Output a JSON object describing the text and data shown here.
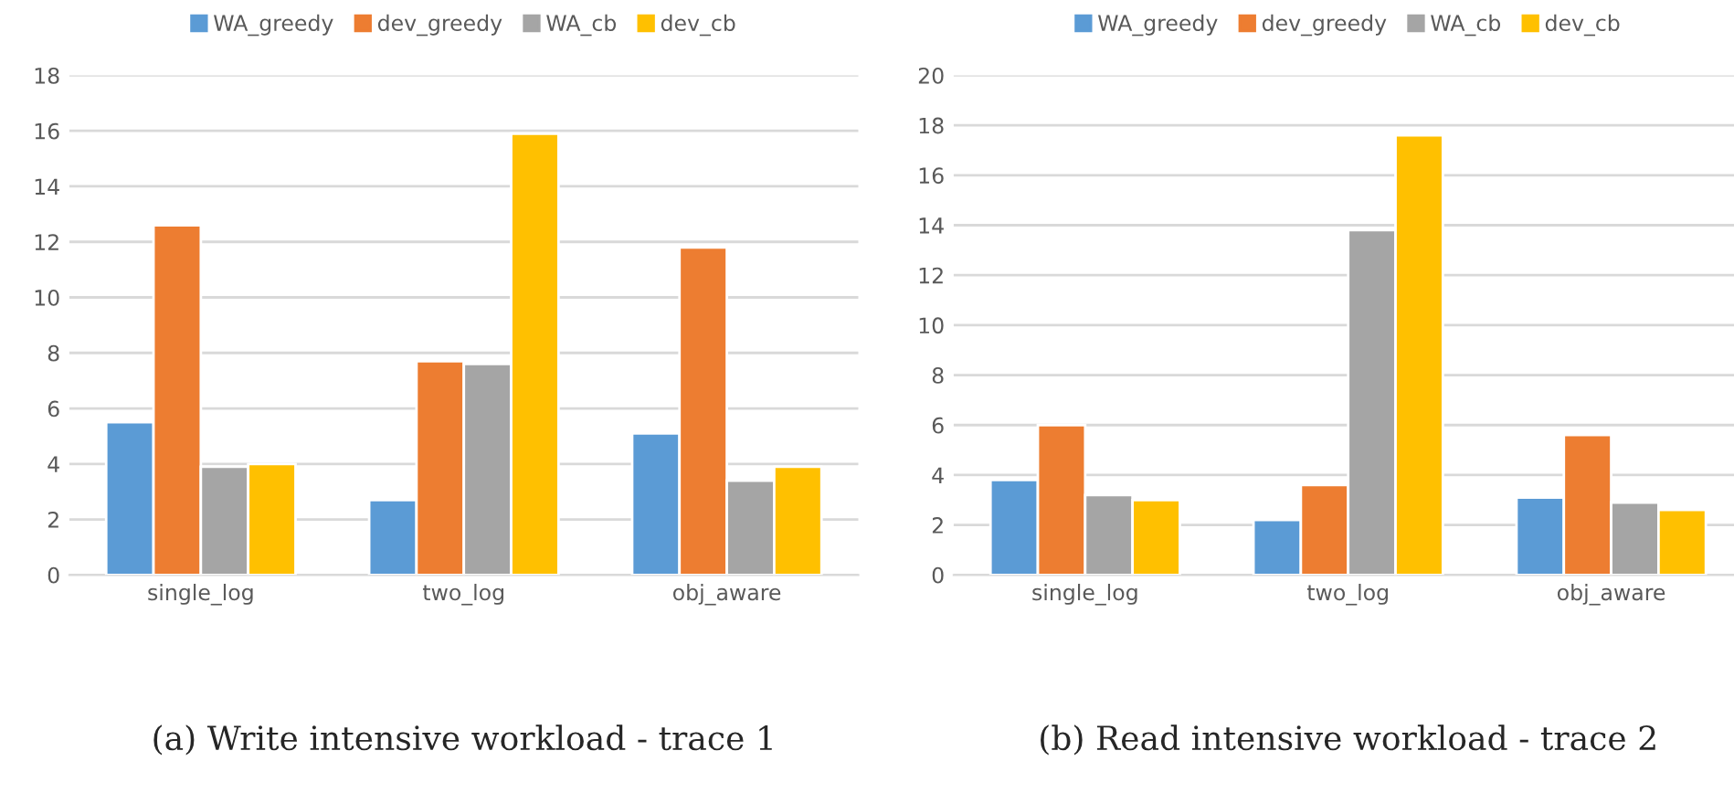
{
  "chart_data": [
    {
      "type": "bar",
      "categories": [
        "single_log",
        "two_log",
        "obj_aware"
      ],
      "series": [
        {
          "name": "WA_greedy",
          "color": "#5b9bd5",
          "values": [
            5.5,
            2.7,
            5.1
          ]
        },
        {
          "name": "dev_greedy",
          "color": "#ed7d31",
          "values": [
            12.6,
            7.7,
            11.8
          ]
        },
        {
          "name": "WA_cb",
          "color": "#a5a5a5",
          "values": [
            3.9,
            7.6,
            3.4
          ]
        },
        {
          "name": "dev_cb",
          "color": "#ffc000",
          "values": [
            4.0,
            15.9,
            3.9
          ]
        }
      ],
      "ylim": [
        0,
        18
      ],
      "yticks": [
        0,
        2,
        4,
        6,
        8,
        10,
        12,
        14,
        16,
        18
      ],
      "grid": "y",
      "legend": "top",
      "annotations": [
        "(a) Write intensive workload - trace 1"
      ]
    },
    {
      "type": "bar",
      "categories": [
        "single_log",
        "two_log",
        "obj_aware"
      ],
      "series": [
        {
          "name": "WA_greedy",
          "color": "#5b9bd5",
          "values": [
            3.8,
            2.2,
            3.1
          ]
        },
        {
          "name": "dev_greedy",
          "color": "#ed7d31",
          "values": [
            6.0,
            3.6,
            5.6
          ]
        },
        {
          "name": "WA_cb",
          "color": "#a5a5a5",
          "values": [
            3.2,
            13.8,
            2.9
          ]
        },
        {
          "name": "dev_cb",
          "color": "#ffc000",
          "values": [
            3.0,
            17.6,
            2.6
          ]
        }
      ],
      "ylim": [
        0,
        20
      ],
      "yticks": [
        0,
        2,
        4,
        6,
        8,
        10,
        12,
        14,
        16,
        18,
        20
      ],
      "grid": "y",
      "legend": "top",
      "annotations": [
        "(b) Read intensive workload - trace 2"
      ]
    }
  ]
}
